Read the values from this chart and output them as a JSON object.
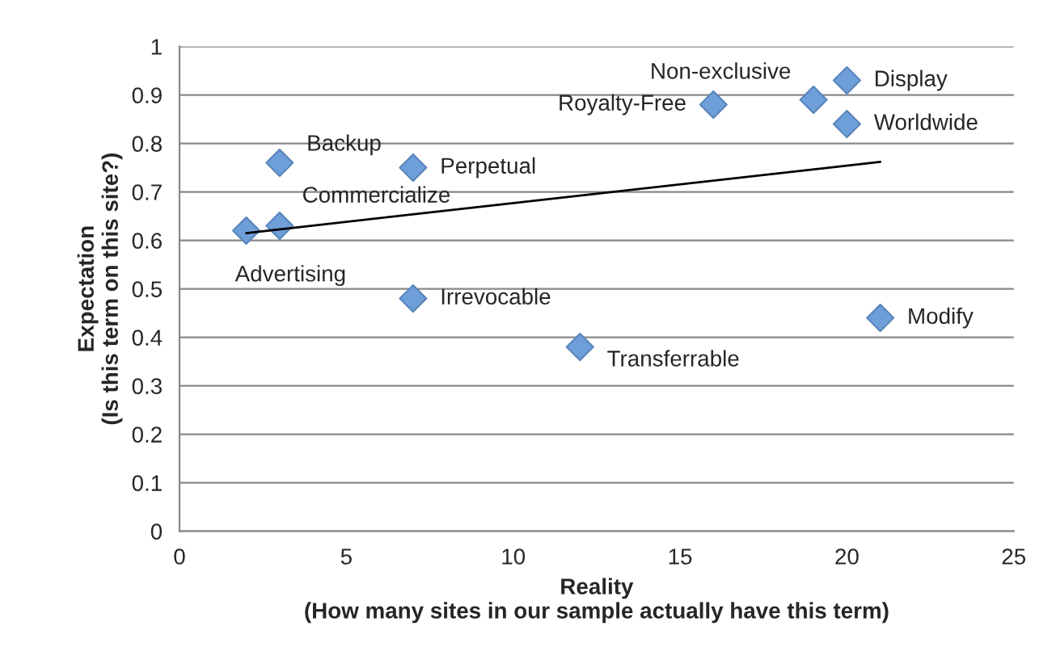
{
  "chart_data": {
    "type": "scatter",
    "xlabel": "Reality\n(How many sites in our sample actually have this term)",
    "ylabel": "Expectation\n(Is this term on this site?)",
    "xlim": [
      0,
      25
    ],
    "xticks": [
      0,
      5,
      10,
      15,
      20,
      25
    ],
    "ylim": [
      0,
      1
    ],
    "yticks": [
      0,
      0.1,
      0.2,
      0.3,
      0.4,
      0.5,
      0.6,
      0.7,
      0.8,
      0.9,
      1
    ],
    "grid": "y",
    "legend": false,
    "marker": "diamond",
    "series": [
      {
        "color": "#6f9fd8",
        "x": [
          2,
          3,
          3,
          7,
          7,
          12,
          16,
          19,
          20,
          20,
          21
        ],
        "values": [
          0.62,
          0.63,
          0.76,
          0.75,
          0.48,
          0.38,
          0.88,
          0.89,
          0.93,
          0.84,
          0.44
        ]
      },
      {
        "type": "line",
        "color": "#000000",
        "line_style": "solid",
        "marker": "none",
        "x": [
          2,
          21
        ],
        "values": [
          0.615,
          0.762
        ]
      }
    ],
    "annotations": [
      {
        "text": "Advertising",
        "x": 2,
        "y": 0.62
      },
      {
        "text": "Commercialize",
        "x": 3,
        "y": 0.63
      },
      {
        "text": "Backup",
        "x": 3,
        "y": 0.76
      },
      {
        "text": "Perpetual",
        "x": 7,
        "y": 0.75
      },
      {
        "text": "Irrevocable",
        "x": 7,
        "y": 0.48
      },
      {
        "text": "Transferrable",
        "x": 12,
        "y": 0.38
      },
      {
        "text": "Royalty-Free",
        "x": 16,
        "y": 0.88
      },
      {
        "text": "Non-exclusive",
        "x": 19,
        "y": 0.89
      },
      {
        "text": "Display",
        "x": 20,
        "y": 0.93
      },
      {
        "text": "Worldwide",
        "x": 20,
        "y": 0.84
      },
      {
        "text": "Modify",
        "x": 21,
        "y": 0.44
      }
    ]
  }
}
